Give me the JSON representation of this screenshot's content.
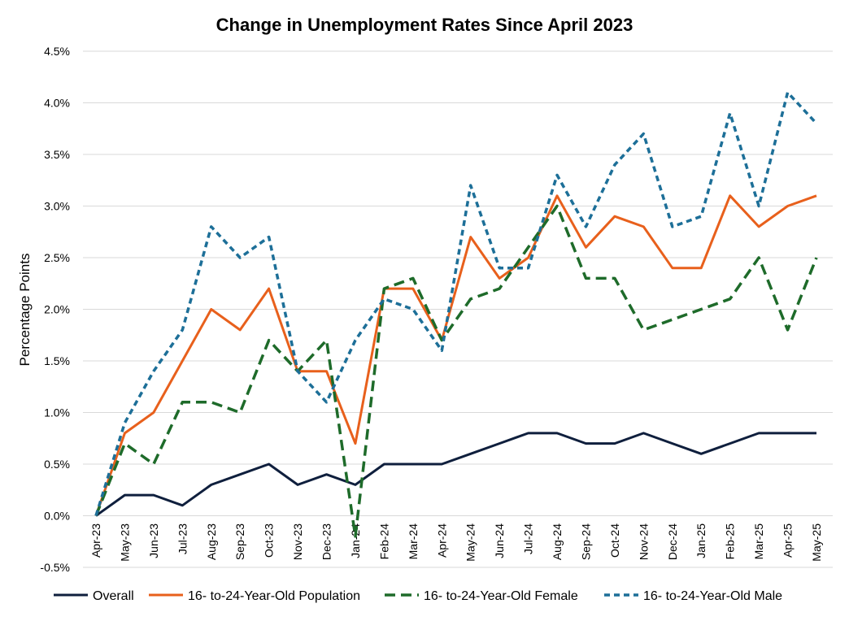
{
  "chart_data": {
    "type": "line",
    "title": "Change in Unemployment Rates Since April 2023",
    "xlabel": "",
    "ylabel": "Percentage Points",
    "ylim": [
      -0.5,
      4.5
    ],
    "ytick_step": 0.5,
    "ytick_format": "percent_1dp",
    "grid": true,
    "legend_position": "bottom",
    "categories": [
      "Apr-23",
      "May-23",
      "Jun-23",
      "Jul-23",
      "Aug-23",
      "Sep-23",
      "Oct-23",
      "Nov-23",
      "Dec-23",
      "Jan-24",
      "Feb-24",
      "Mar-24",
      "Apr-24",
      "May-24",
      "Jun-24",
      "Jul-24",
      "Aug-24",
      "Sep-24",
      "Oct-24",
      "Nov-24",
      "Dec-24",
      "Jan-25",
      "Feb-25",
      "Mar-25",
      "Apr-25",
      "May-25"
    ],
    "series": [
      {
        "name": "Overall",
        "color": "#0f1f3d",
        "dash": "solid",
        "values": [
          0.0,
          0.2,
          0.2,
          0.1,
          0.3,
          0.4,
          0.5,
          0.3,
          0.4,
          0.3,
          0.5,
          0.5,
          0.5,
          0.6,
          0.7,
          0.8,
          0.8,
          0.7,
          0.7,
          0.8,
          0.7,
          0.6,
          0.7,
          0.8,
          0.8,
          0.8
        ]
      },
      {
        "name": "16- to-24-Year-Old Population",
        "color": "#e8601c",
        "dash": "solid",
        "values": [
          0.0,
          0.8,
          1.0,
          1.5,
          2.0,
          1.8,
          2.2,
          1.4,
          1.4,
          0.7,
          2.2,
          2.2,
          1.7,
          2.7,
          2.3,
          2.5,
          3.1,
          2.6,
          2.9,
          2.8,
          2.4,
          2.4,
          3.1,
          2.8,
          3.0,
          3.1
        ]
      },
      {
        "name": "16- to-24-Year-Old Female",
        "color": "#1e6b2a",
        "dash": "long-dash",
        "values": [
          0.0,
          0.7,
          0.5,
          1.1,
          1.1,
          1.0,
          1.7,
          1.4,
          1.7,
          -0.2,
          2.2,
          2.3,
          1.7,
          2.1,
          2.2,
          2.6,
          3.0,
          2.3,
          2.3,
          1.8,
          1.9,
          2.0,
          2.1,
          2.5,
          1.8,
          2.5
        ]
      },
      {
        "name": "16- to-24-Year-Old Male",
        "color": "#1d6f98",
        "dash": "short-dash",
        "values": [
          0.0,
          0.9,
          1.4,
          1.8,
          2.8,
          2.5,
          2.7,
          1.4,
          1.1,
          1.7,
          2.1,
          2.0,
          1.6,
          3.2,
          2.4,
          2.4,
          3.3,
          2.8,
          3.4,
          3.7,
          2.8,
          2.9,
          3.9,
          3.0,
          4.1,
          3.8
        ]
      }
    ]
  }
}
